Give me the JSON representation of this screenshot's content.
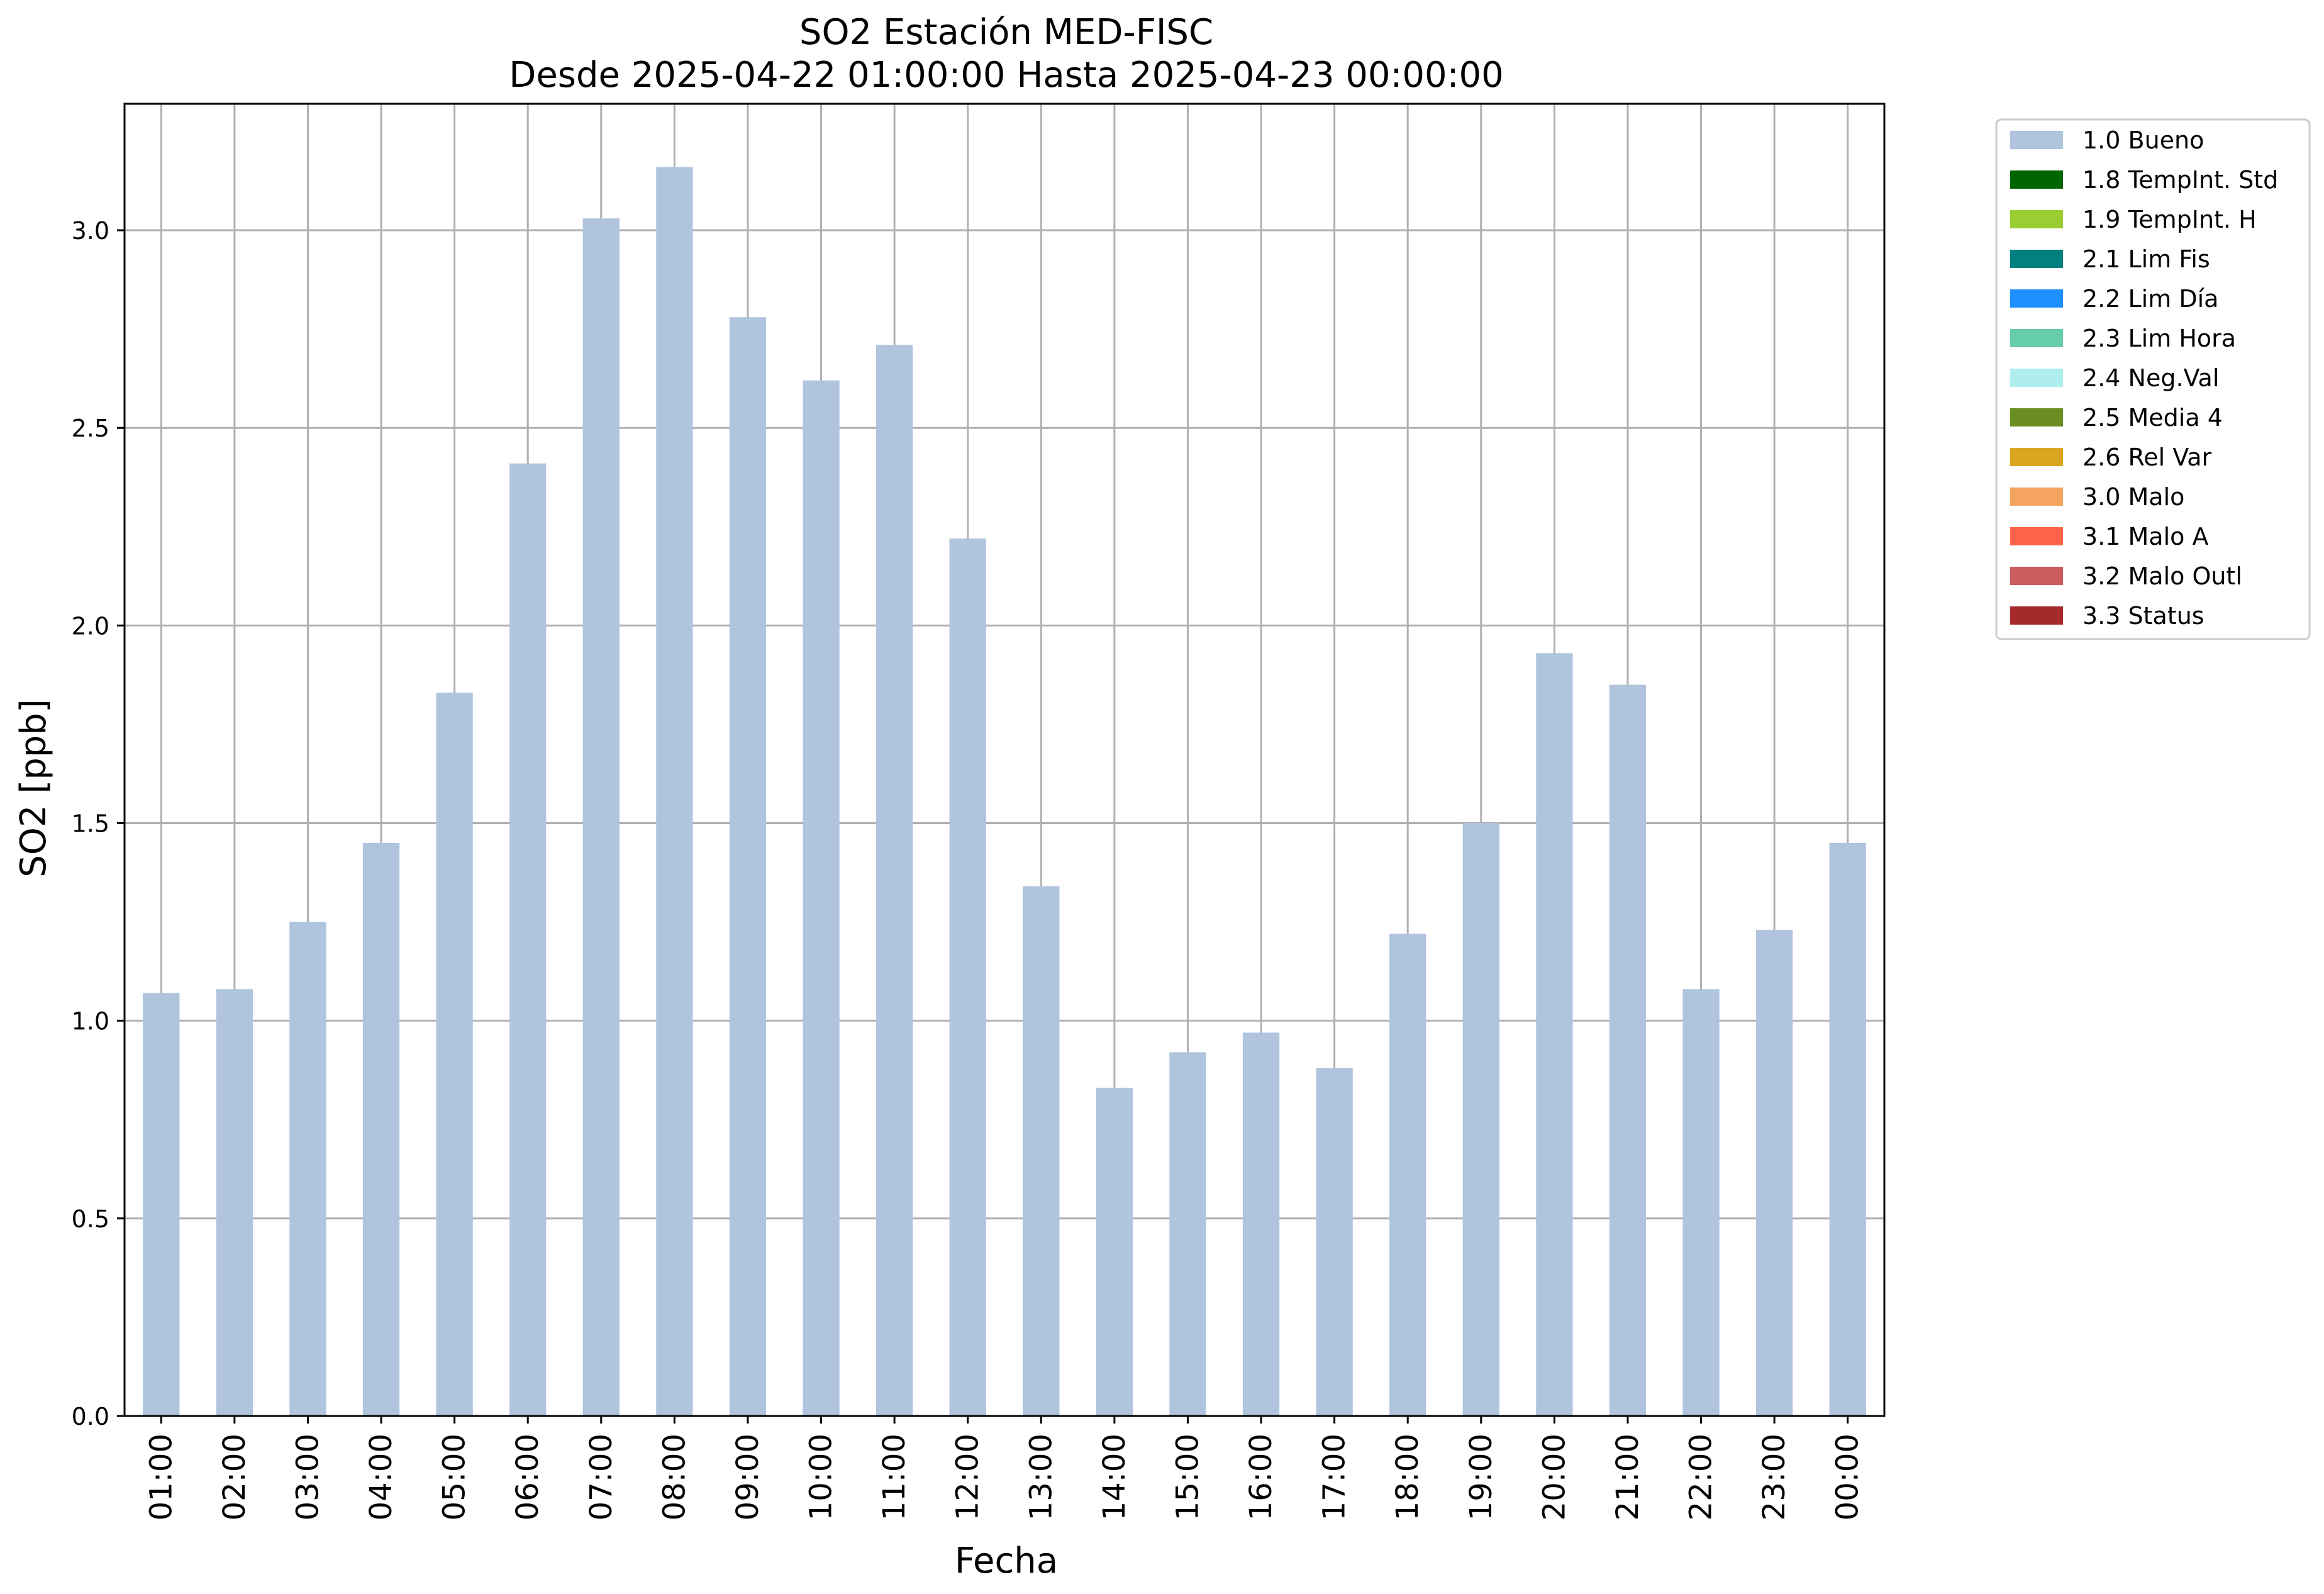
{
  "chart_data": {
    "type": "bar",
    "title": "SO2 Estación MED-FISC",
    "subtitle": "Desde 2025-04-22 01:00:00 Hasta 2025-04-23 00:00:00",
    "xlabel": "Fecha",
    "ylabel": "SO2 [ppb]",
    "ylim": [
      0,
      3.32
    ],
    "yticks": [
      "0.0",
      "0.5",
      "1.0",
      "1.5",
      "2.0",
      "2.5",
      "3.0"
    ],
    "grid": true,
    "legend_position": "outside-top-right",
    "categories": [
      "01:00",
      "02:00",
      "03:00",
      "04:00",
      "05:00",
      "06:00",
      "07:00",
      "08:00",
      "09:00",
      "10:00",
      "11:00",
      "12:00",
      "13:00",
      "14:00",
      "15:00",
      "16:00",
      "17:00",
      "18:00",
      "19:00",
      "20:00",
      "21:00",
      "22:00",
      "23:00",
      "00:00"
    ],
    "series": [
      {
        "name": "1.0 Bueno",
        "color": "#b0c4de",
        "values": [
          1.07,
          1.08,
          1.25,
          1.45,
          1.83,
          2.41,
          3.03,
          3.16,
          2.78,
          2.62,
          2.71,
          2.22,
          1.34,
          0.83,
          0.92,
          0.97,
          0.88,
          1.22,
          1.5,
          1.93,
          1.85,
          1.08,
          1.23,
          1.45
        ]
      }
    ],
    "legend": [
      {
        "label": "1.0 Bueno",
        "color": "#b0c4de"
      },
      {
        "label": "1.8 TempInt. Std",
        "color": "#006400"
      },
      {
        "label": "1.9 TempInt. H",
        "color": "#9acd32"
      },
      {
        "label": "2.1 Lim Fis",
        "color": "#008080"
      },
      {
        "label": "2.2 Lim Día",
        "color": "#1e90ff"
      },
      {
        "label": "2.3 Lim Hora",
        "color": "#66cdaa"
      },
      {
        "label": "2.4 Neg.Val",
        "color": "#afeeee"
      },
      {
        "label": "2.5 Media 4",
        "color": "#6b8e23"
      },
      {
        "label": "2.6 Rel Var",
        "color": "#daa520"
      },
      {
        "label": "3.0 Malo",
        "color": "#f4a460"
      },
      {
        "label": "3.1 Malo A",
        "color": "#ff6347"
      },
      {
        "label": "3.2 Malo Outl",
        "color": "#cd5c5c"
      },
      {
        "label": "3.3 Status",
        "color": "#a52a2a"
      }
    ]
  }
}
